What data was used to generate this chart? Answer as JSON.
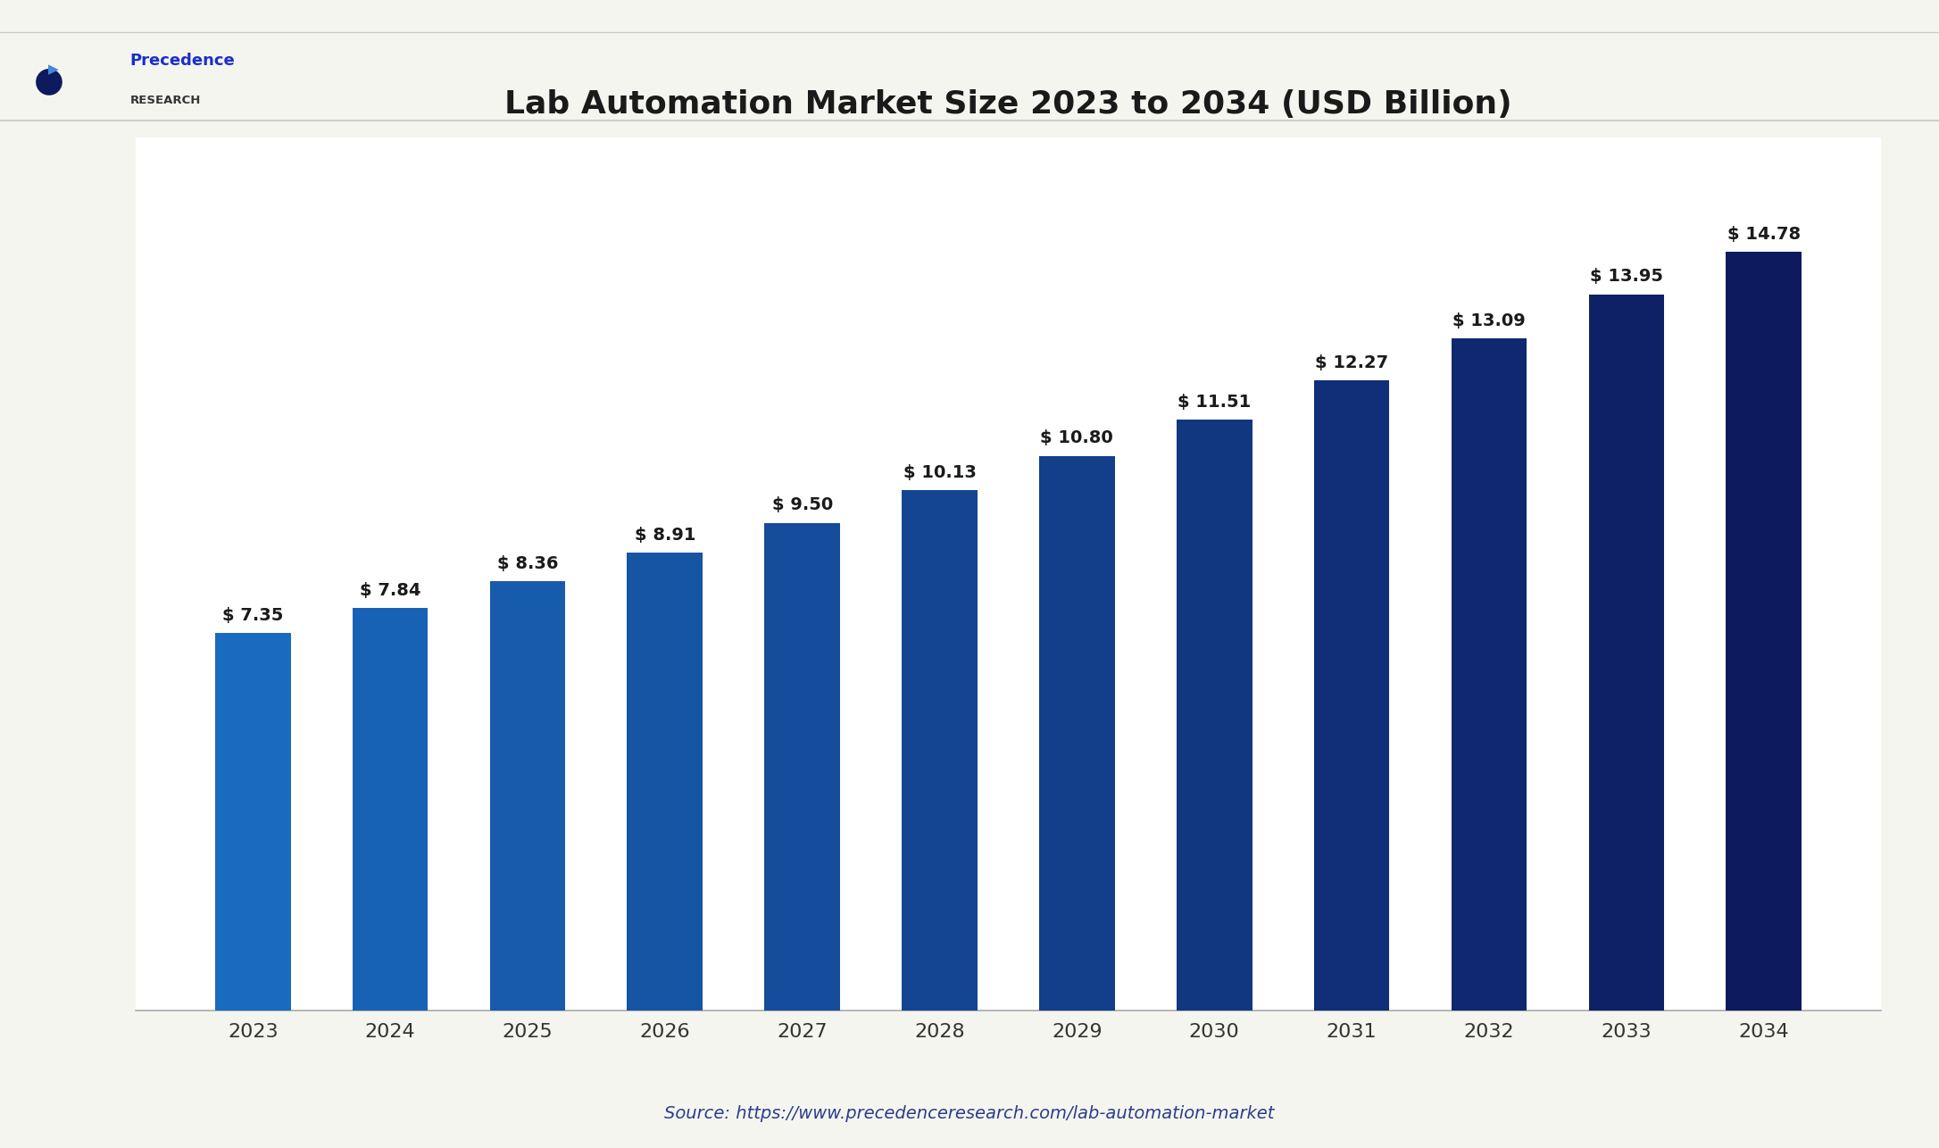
{
  "title": "Lab Automation Market Size 2023 to 2034 (USD Billion)",
  "categories": [
    "2023",
    "2024",
    "2025",
    "2026",
    "2027",
    "2028",
    "2029",
    "2030",
    "2031",
    "2032",
    "2033",
    "2034"
  ],
  "values": [
    7.35,
    7.84,
    8.36,
    8.91,
    9.5,
    10.13,
    10.8,
    11.51,
    12.27,
    13.09,
    13.95,
    14.78
  ],
  "labels": [
    "$ 7.35",
    "$ 7.84",
    "$ 8.36",
    "$ 8.91",
    "$ 9.50",
    "$ 10.13",
    "$ 10.80",
    "$ 11.51",
    "$ 12.27",
    "$ 13.09",
    "$ 13.95",
    "$ 14.78"
  ],
  "bar_color_light": "#1a6abf",
  "bar_color_dark": "#0d1a5e",
  "background_color": "#f5f5f0",
  "plot_bg_color": "#ffffff",
  "title_color": "#1a1a1a",
  "label_color": "#1a1a1a",
  "tick_color": "#333333",
  "source_text": "Source: https://www.precedenceresearch.com/lab-automation-market",
  "source_color": "#2c3e8c",
  "ylim": [
    0,
    17
  ],
  "title_fontsize": 26,
  "label_fontsize": 14,
  "tick_fontsize": 16,
  "source_fontsize": 14,
  "logo_text_line1": "Precedence",
  "logo_text_line2": "RESEARCH"
}
